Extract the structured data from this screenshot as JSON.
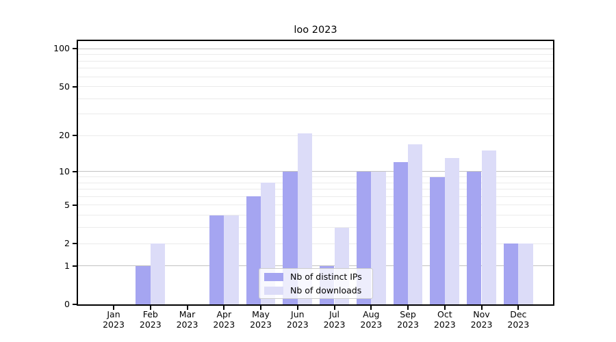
{
  "title": "loo 2023",
  "chart_data": {
    "type": "bar",
    "title": "loo 2023",
    "categories": [
      "Jan",
      "Feb",
      "Mar",
      "Apr",
      "May",
      "Jun",
      "Jul",
      "Aug",
      "Sep",
      "Oct",
      "Nov",
      "Dec"
    ],
    "year_label": "2023",
    "series": [
      {
        "name": "Nb of distinct IPs",
        "color": "#a5a5f1",
        "values": [
          0,
          1,
          0,
          4,
          6,
          10,
          1,
          10,
          12,
          9,
          10,
          2
        ]
      },
      {
        "name": "Nb of downloads",
        "color": "#dcdcf8",
        "values": [
          0,
          2,
          0,
          4,
          8,
          21,
          3,
          10,
          17,
          13,
          15,
          2
        ]
      }
    ],
    "yscale": "log1p",
    "ylim": [
      0,
      115
    ],
    "y_ticks": [
      0,
      1,
      2,
      5,
      10,
      20,
      50,
      100
    ],
    "y_minor_gridlines": [
      2,
      3,
      4,
      5,
      6,
      7,
      8,
      9,
      20,
      30,
      40,
      50,
      60,
      70,
      80,
      90
    ],
    "y_major_gridlines": [
      1,
      10,
      100
    ],
    "xlabel": "",
    "ylabel": "",
    "grid": true,
    "legend_position": "lower center",
    "colors": {
      "minor_grid": "#ebebeb",
      "major_grid": "#c2c2c2",
      "spine": "#000000",
      "background": "#ffffff"
    }
  }
}
